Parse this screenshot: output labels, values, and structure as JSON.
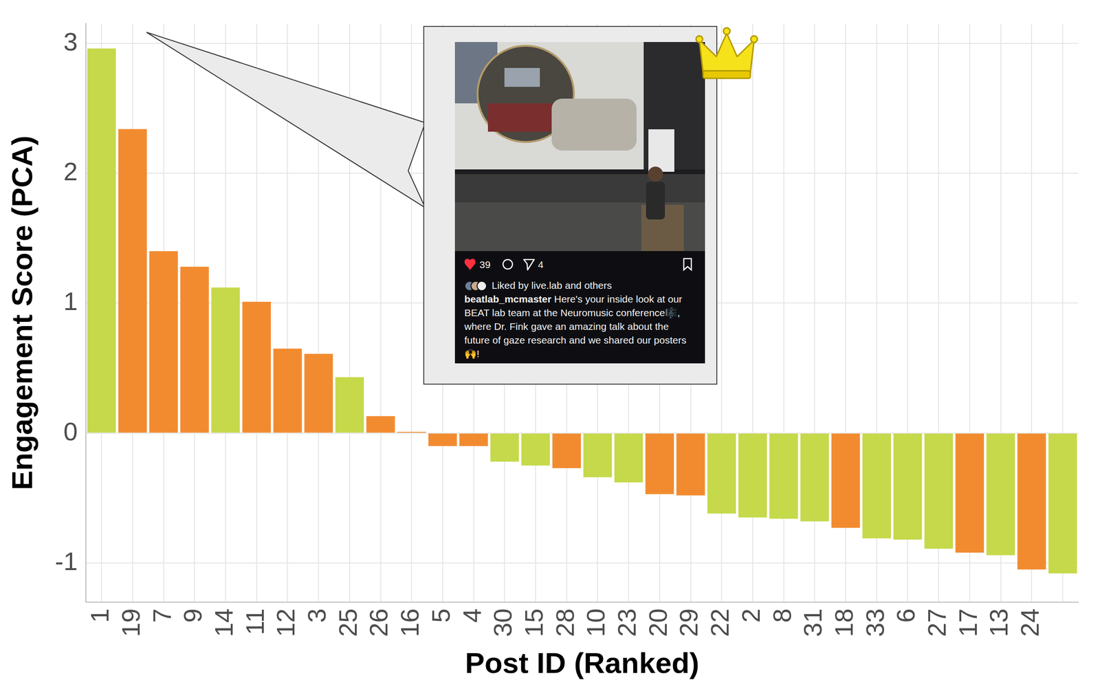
{
  "chart_data": {
    "type": "bar",
    "x_label": "Post ID (Ranked)",
    "y_label": "Engagement Score (PCA)",
    "categories": [
      "1",
      "19",
      "7",
      "9",
      "14",
      "11",
      "12",
      "3",
      "25",
      "26",
      "16",
      "5",
      "4",
      "30",
      "15",
      "28",
      "10",
      "23",
      "20",
      "29",
      "22",
      "2",
      "8",
      "31",
      "18",
      "33",
      "6",
      "27",
      "17",
      "13",
      "24",
      null
    ],
    "values": [
      2.96,
      2.34,
      1.4,
      1.28,
      1.12,
      1.01,
      0.65,
      0.61,
      0.43,
      0.13,
      0.01,
      -0.1,
      -0.1,
      -0.22,
      -0.25,
      -0.27,
      -0.34,
      -0.38,
      -0.47,
      -0.48,
      -0.62,
      -0.65,
      -0.66,
      -0.68,
      -0.73,
      -0.81,
      -0.82,
      -0.89,
      -0.92,
      -0.94,
      -1.05,
      -1.08
    ],
    "colors": [
      "#c5d94a",
      "#f28b30",
      "#f28b30",
      "#f28b30",
      "#c5d94a",
      "#f28b30",
      "#f28b30",
      "#f28b30",
      "#c5d94a",
      "#f28b30",
      "#f28b30",
      "#f28b30",
      "#f28b30",
      "#c5d94a",
      "#c5d94a",
      "#f28b30",
      "#c5d94a",
      "#c5d94a",
      "#f28b30",
      "#f28b30",
      "#c5d94a",
      "#c5d94a",
      "#c5d94a",
      "#c5d94a",
      "#f28b30",
      "#c5d94a",
      "#c5d94a",
      "#c5d94a",
      "#f28b30",
      "#c5d94a",
      "#f28b30",
      "#c5d94a"
    ],
    "ylim": [
      -1.3,
      3.15
    ],
    "yticks": [
      -1,
      0,
      1,
      2,
      3
    ],
    "grid": true
  },
  "inset": {
    "likes": 39,
    "shares": 4,
    "liked_by": "Liked by live.lab and others",
    "username": "beatlab_mcmaster",
    "caption": "Here's your inside look at our BEAT lab team at the Neuromusic conference🎼, where Dr. Fink gave an amazing talk about the future of gaze research and we shared our posters🙌!"
  }
}
